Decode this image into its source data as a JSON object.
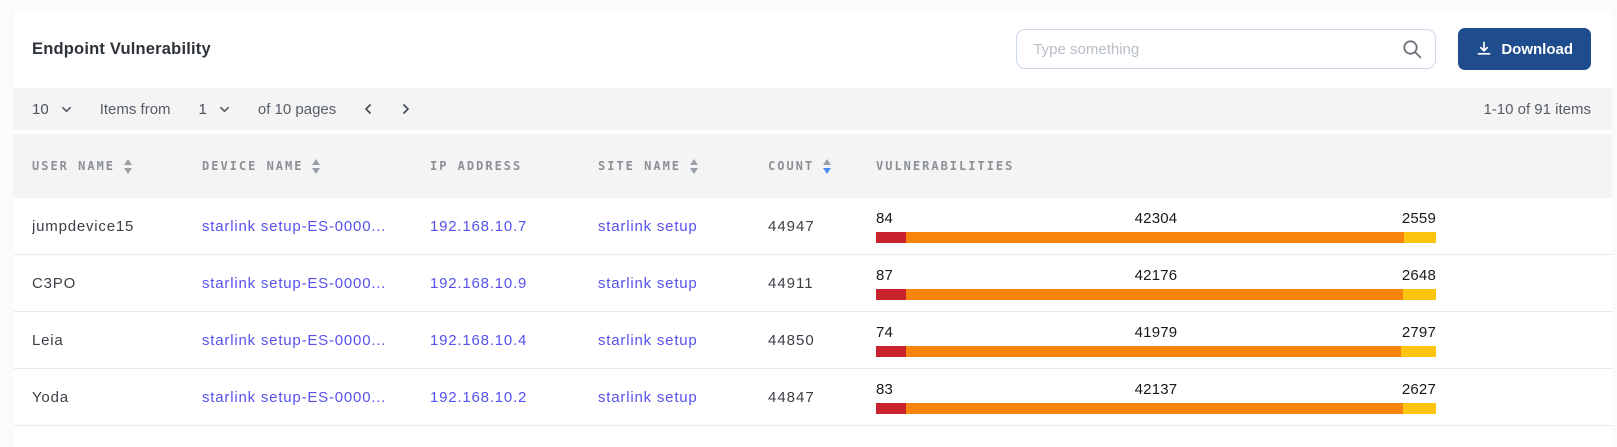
{
  "header": {
    "title": "Endpoint Vulnerability",
    "search": {
      "placeholder": "Type something",
      "icon": "search-icon"
    },
    "download_button": {
      "label": "Download",
      "icon": "download-icon",
      "color": "#1e4c8c"
    }
  },
  "pagination": {
    "page_size": "10",
    "items_from_label": "Items from",
    "current_page": "1",
    "pages_label": "of 10 pages",
    "prev_icon": "chevron-left-icon",
    "next_icon": "chevron-right-icon",
    "range_label": "1-10 of 91 items"
  },
  "table": {
    "columns": [
      {
        "label": "USER NAME",
        "sortable": true,
        "sort": null
      },
      {
        "label": "DEVICE NAME",
        "sortable": true,
        "sort": null
      },
      {
        "label": "IP ADDRESS",
        "sortable": false,
        "sort": null
      },
      {
        "label": "SITE NAME",
        "sortable": true,
        "sort": null
      },
      {
        "label": "COUNT",
        "sortable": true,
        "sort": "desc"
      },
      {
        "label": "VULNERABILITIES",
        "sortable": false,
        "sort": null
      }
    ],
    "rows": [
      {
        "user_name": "jumpdevice15",
        "device_name": "starlink setup-ES-0000...",
        "ip_address": "192.168.10.7",
        "site_name": "starlink setup",
        "count": "44947",
        "vulnerabilities": {
          "critical": 84,
          "high": 42304,
          "medium": 2559
        }
      },
      {
        "user_name": "C3PO",
        "device_name": "starlink setup-ES-0000...",
        "ip_address": "192.168.10.9",
        "site_name": "starlink setup",
        "count": "44911",
        "vulnerabilities": {
          "critical": 87,
          "high": 42176,
          "medium": 2648
        }
      },
      {
        "user_name": "Leia",
        "device_name": "starlink setup-ES-0000...",
        "ip_address": "192.168.10.4",
        "site_name": "starlink setup",
        "count": "44850",
        "vulnerabilities": {
          "critical": 74,
          "high": 41979,
          "medium": 2797
        }
      },
      {
        "user_name": "Yoda",
        "device_name": "starlink setup-ES-0000...",
        "ip_address": "192.168.10.2",
        "site_name": "starlink setup",
        "count": "44847",
        "vulnerabilities": {
          "critical": 83,
          "high": 42137,
          "medium": 2627
        }
      }
    ]
  },
  "colors": {
    "accent_navy": "#1e4c8c",
    "link": "#5552ee",
    "sort_active": "#4a8df5",
    "bar_critical": "#c8232c",
    "bar_high": "#f8830d",
    "bar_medium": "#fcc30f",
    "band_bg": "#f4f4f5"
  }
}
